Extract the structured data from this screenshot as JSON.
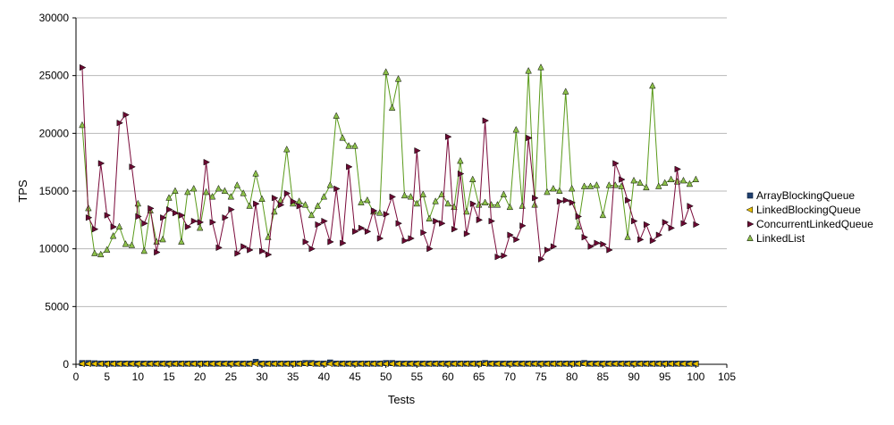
{
  "chart_data": {
    "type": "line",
    "xlabel": "Tests",
    "ylabel": "TPS",
    "xlim": [
      0,
      105
    ],
    "ylim": [
      0,
      30000
    ],
    "x_ticks": [
      0,
      5,
      10,
      15,
      20,
      25,
      30,
      35,
      40,
      45,
      50,
      55,
      60,
      65,
      70,
      75,
      80,
      85,
      90,
      95,
      100,
      105
    ],
    "y_ticks": [
      0,
      5000,
      10000,
      15000,
      20000,
      25000,
      30000
    ],
    "grid": "horizontal",
    "legend_position": "right",
    "x": [
      1,
      2,
      3,
      4,
      5,
      6,
      7,
      8,
      9,
      10,
      11,
      12,
      13,
      14,
      15,
      16,
      17,
      18,
      19,
      20,
      21,
      22,
      23,
      24,
      25,
      26,
      27,
      28,
      29,
      30,
      31,
      32,
      33,
      34,
      35,
      36,
      37,
      38,
      39,
      40,
      41,
      42,
      43,
      44,
      45,
      46,
      47,
      48,
      49,
      50,
      51,
      52,
      53,
      54,
      55,
      56,
      57,
      58,
      59,
      60,
      61,
      62,
      63,
      64,
      65,
      66,
      67,
      68,
      69,
      70,
      71,
      72,
      73,
      74,
      75,
      76,
      77,
      78,
      79,
      80,
      81,
      82,
      83,
      84,
      85,
      86,
      87,
      88,
      89,
      90,
      91,
      92,
      93,
      94,
      95,
      96,
      97,
      98,
      99,
      100
    ],
    "series": [
      {
        "name": "ArrayBlockingQueue",
        "color": "#1f3f6f",
        "marker": "square",
        "values": [
          100,
          100,
          80,
          60,
          60,
          60,
          60,
          60,
          60,
          60,
          60,
          60,
          60,
          60,
          60,
          60,
          60,
          60,
          60,
          60,
          60,
          60,
          60,
          60,
          60,
          60,
          60,
          60,
          200,
          60,
          60,
          60,
          60,
          60,
          60,
          60,
          100,
          100,
          60,
          60,
          150,
          60,
          60,
          60,
          60,
          60,
          60,
          60,
          60,
          100,
          100,
          60,
          60,
          60,
          60,
          60,
          60,
          60,
          60,
          60,
          60,
          60,
          60,
          60,
          60,
          100,
          60,
          60,
          60,
          60,
          60,
          60,
          60,
          60,
          60,
          60,
          60,
          60,
          60,
          60,
          60,
          100,
          60,
          60,
          60,
          60,
          60,
          60,
          60,
          60,
          60,
          60,
          60,
          60,
          60,
          60,
          60,
          60,
          60,
          60
        ]
      },
      {
        "name": "LinkedBlockingQueue",
        "color": "#e8c000",
        "marker": "triangle-left",
        "values": [
          40,
          40,
          40,
          40,
          40,
          40,
          40,
          40,
          40,
          40,
          40,
          40,
          40,
          40,
          40,
          40,
          40,
          40,
          40,
          40,
          40,
          40,
          40,
          40,
          40,
          40,
          40,
          40,
          40,
          40,
          40,
          40,
          40,
          40,
          40,
          40,
          40,
          40,
          40,
          40,
          40,
          40,
          40,
          40,
          40,
          40,
          40,
          40,
          40,
          40,
          40,
          40,
          40,
          40,
          40,
          40,
          40,
          40,
          40,
          40,
          40,
          40,
          40,
          40,
          40,
          40,
          40,
          40,
          40,
          40,
          40,
          40,
          40,
          40,
          40,
          40,
          40,
          40,
          40,
          40,
          40,
          40,
          40,
          40,
          40,
          40,
          40,
          40,
          40,
          40,
          40,
          40,
          40,
          40,
          40,
          40,
          40,
          40,
          40,
          40
        ]
      },
      {
        "name": "ConcurrentLinkedQueue",
        "color": "#7a0a3a",
        "marker": "triangle-right",
        "values": [
          25700,
          12700,
          11700,
          17400,
          12900,
          11900,
          20900,
          21600,
          17100,
          12800,
          12200,
          13500,
          9700,
          12700,
          13400,
          13100,
          12900,
          11900,
          12400,
          12300,
          17500,
          12300,
          10100,
          12700,
          13400,
          9600,
          10200,
          9900,
          13900,
          9800,
          9500,
          14400,
          13800,
          14800,
          14100,
          13700,
          10600,
          10000,
          12100,
          12400,
          10600,
          15200,
          10500,
          17100,
          11500,
          11800,
          11500,
          13300,
          10900,
          13000,
          14500,
          12200,
          10700,
          10900,
          18500,
          11400,
          10000,
          12400,
          12200,
          19700,
          11700,
          16500,
          11300,
          13900,
          12500,
          21100,
          12400,
          9300,
          9400,
          11200,
          10800,
          12000,
          19600,
          14400,
          9100,
          9900,
          10200,
          14100,
          14200,
          14000,
          12800,
          11000,
          10200,
          10500,
          10400,
          9900,
          17400,
          16000,
          14200,
          12400,
          10800,
          12100,
          10700,
          11200,
          12300,
          11800,
          16900,
          12200,
          13700,
          12100
        ]
      },
      {
        "name": "LinkedList",
        "color": "#5a9a1a",
        "marker": "triangle-up",
        "values": [
          20700,
          13500,
          9600,
          9500,
          9900,
          11100,
          11900,
          10400,
          10300,
          13900,
          9800,
          13300,
          10600,
          10800,
          14400,
          15000,
          10600,
          14900,
          15200,
          11800,
          14900,
          14500,
          15200,
          15000,
          14500,
          15500,
          14800,
          13700,
          16500,
          14300,
          11000,
          13200,
          14200,
          18600,
          13900,
          14100,
          13800,
          12900,
          13700,
          14500,
          15500,
          21500,
          19600,
          18900,
          18900,
          14000,
          14200,
          13200,
          13100,
          25300,
          22200,
          24700,
          14600,
          14500,
          13900,
          14700,
          12600,
          14100,
          14700,
          13900,
          13600,
          17600,
          13200,
          16000,
          13800,
          14000,
          13800,
          13800,
          14700,
          13600,
          20300,
          13700,
          25400,
          13800,
          25700,
          14900,
          15200,
          15000,
          23600,
          15200,
          11900,
          15400,
          15400,
          15500,
          12900,
          15500,
          15500,
          15400,
          11000,
          15900,
          15700,
          15300,
          24100,
          15400,
          15700,
          16000,
          15800,
          15900,
          15600,
          16000
        ]
      }
    ]
  }
}
